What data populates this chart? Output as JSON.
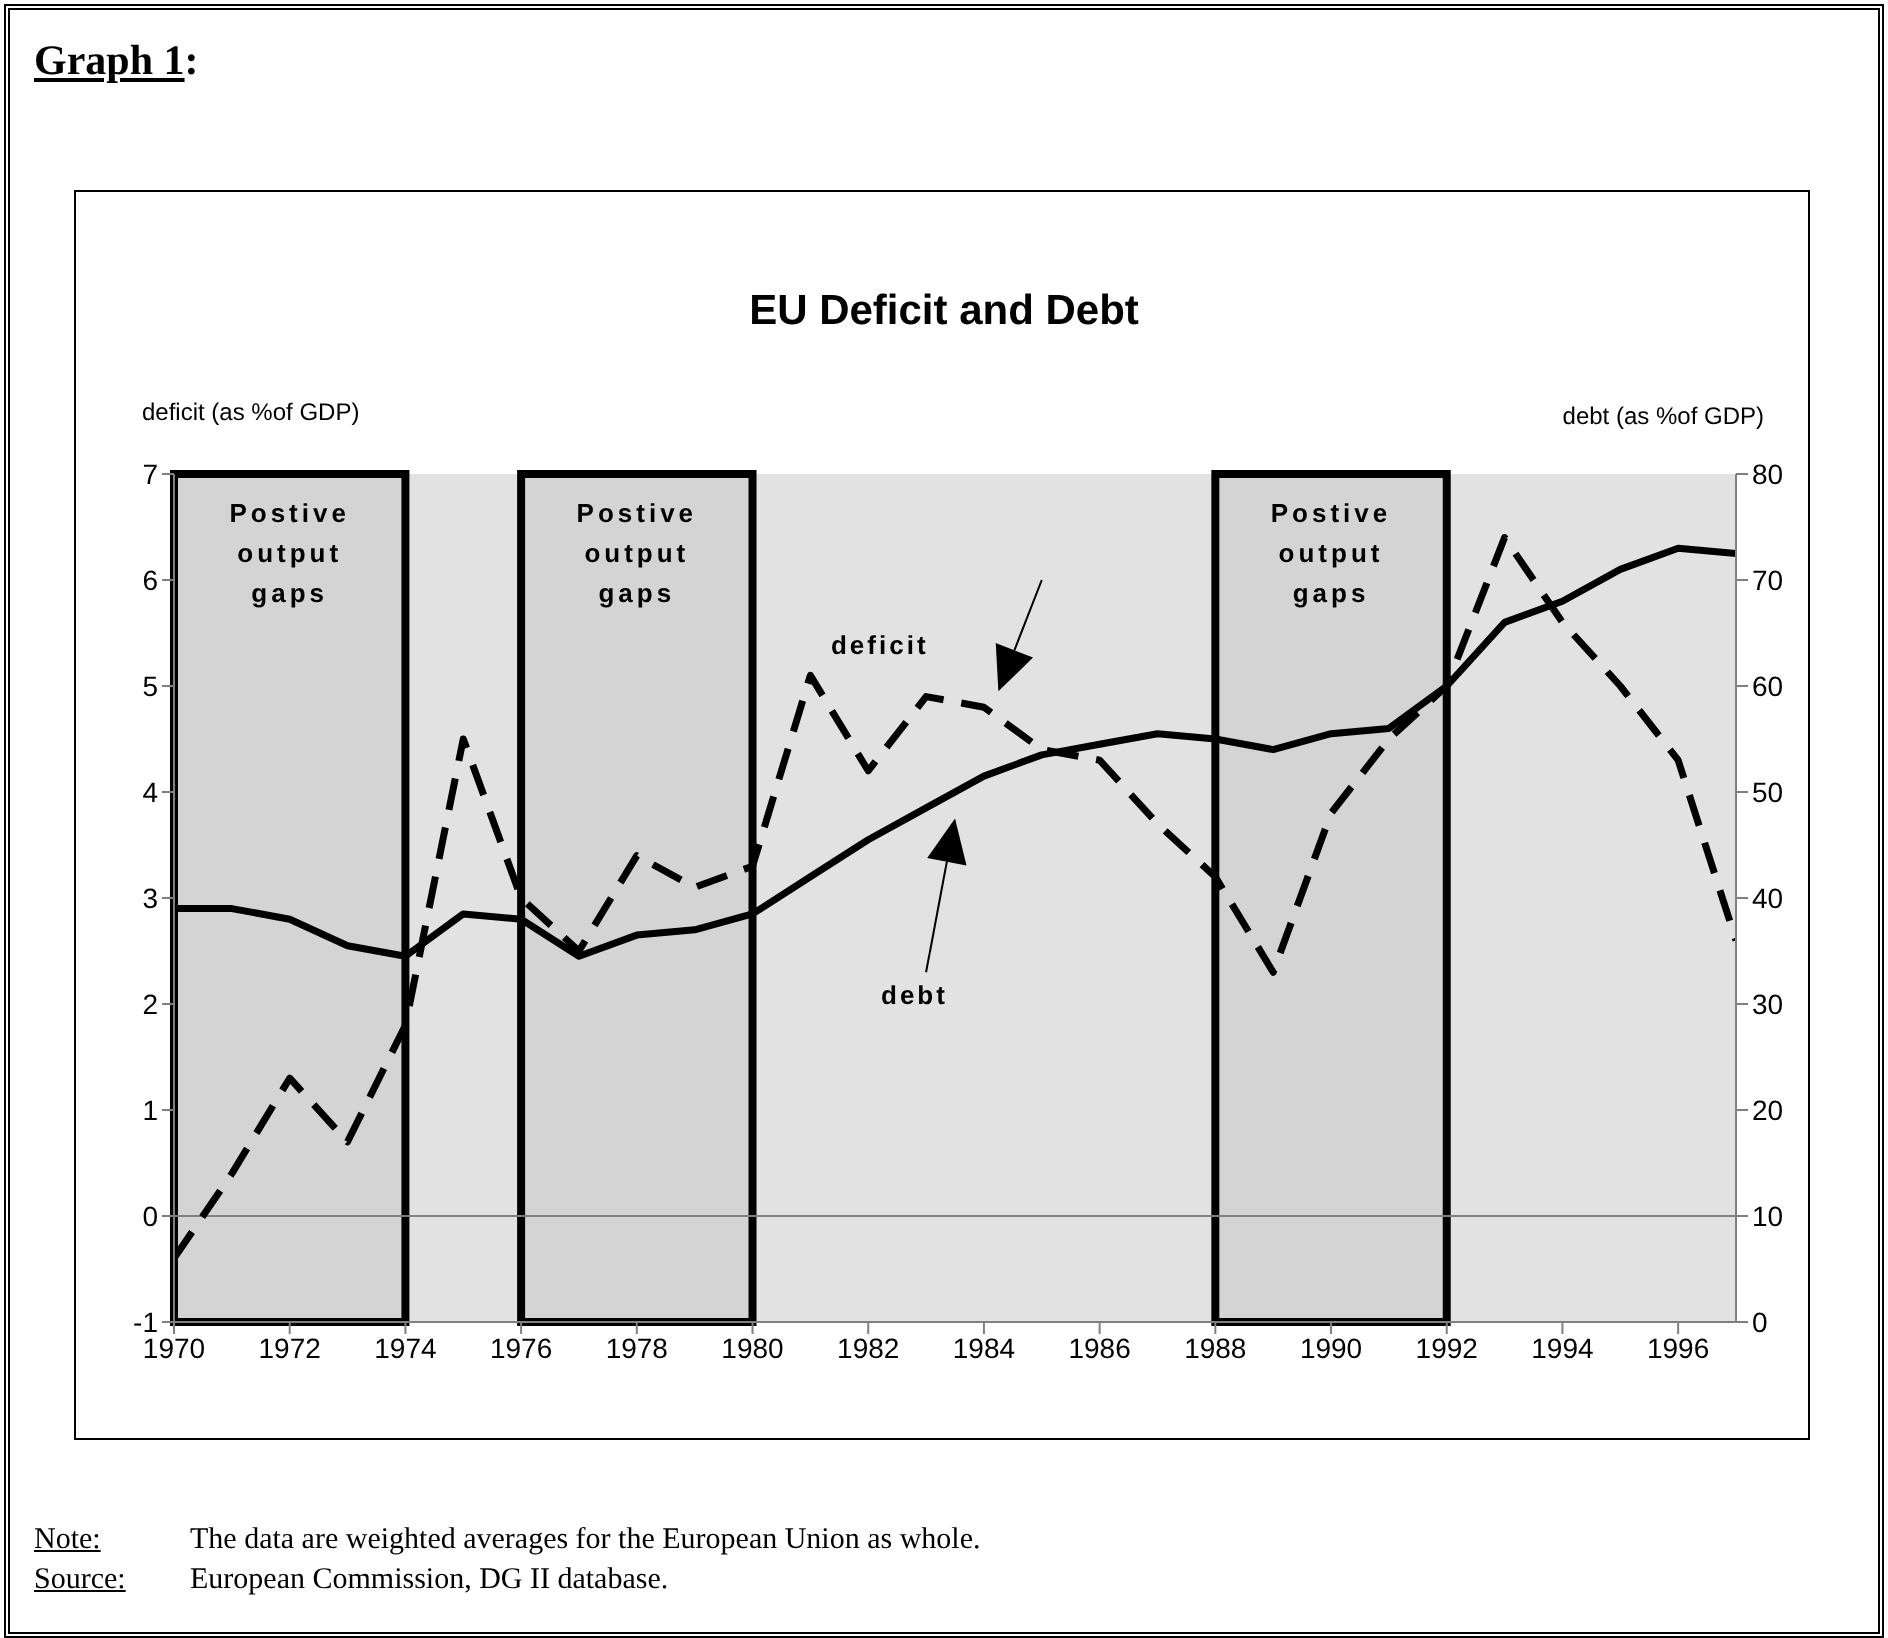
{
  "chart_data": {
    "type": "line",
    "title": "EU Deficit and Debt",
    "ylabel": "deficit (as %of GDP)",
    "y2label": "debt (as %of GDP)",
    "x": [
      1970,
      1971,
      1972,
      1973,
      1974,
      1975,
      1976,
      1977,
      1978,
      1979,
      1980,
      1981,
      1982,
      1983,
      1984,
      1985,
      1986,
      1987,
      1988,
      1989,
      1990,
      1991,
      1992,
      1993,
      1994,
      1995,
      1996,
      1997
    ],
    "series": [
      {
        "name": "deficit",
        "color": "#000000",
        "line_style": "dashed",
        "values": [
          -0.4,
          0.4,
          1.3,
          0.7,
          1.8,
          4.5,
          3.0,
          2.5,
          3.4,
          3.1,
          3.3,
          5.1,
          4.2,
          4.9,
          4.8,
          4.4,
          4.3,
          3.7,
          3.2,
          2.3,
          3.8,
          4.5,
          5.0,
          6.4,
          5.6,
          5.0,
          4.3,
          2.6
        ]
      },
      {
        "name": "debt",
        "color": "#000000",
        "line_style": "solid",
        "axis": "y2",
        "values": [
          39,
          39,
          38,
          35.5,
          34.5,
          38.5,
          38,
          34.5,
          36.5,
          37,
          38.5,
          42,
          45.5,
          48.5,
          51.5,
          53.5,
          54.5,
          55.5,
          55,
          54,
          55.5,
          56,
          60,
          66,
          68,
          71,
          73,
          72.5
        ]
      }
    ],
    "xlim": [
      1970,
      1997
    ],
    "xticks": [
      1970,
      1972,
      1974,
      1976,
      1978,
      1980,
      1982,
      1984,
      1986,
      1988,
      1990,
      1992,
      1994,
      1996
    ],
    "ylim": [
      -1,
      7
    ],
    "yticks": [
      -1,
      0,
      1,
      2,
      3,
      4,
      5,
      6,
      7
    ],
    "y2lim": [
      0,
      80
    ],
    "y2ticks": [
      0,
      10,
      20,
      30,
      40,
      50,
      60,
      70,
      80
    ],
    "ref_lines": [
      {
        "axis": "y",
        "value": 0,
        "color": "#808080"
      }
    ],
    "bands": [
      {
        "axis": "x",
        "from": 1970,
        "to": 1974,
        "label": "Postive output gaps",
        "color": "#000000"
      },
      {
        "axis": "x",
        "from": 1976,
        "to": 1980,
        "label": "Postive output gaps",
        "color": "#000000"
      },
      {
        "axis": "x",
        "from": 1988,
        "to": 1992,
        "label": "Postive output gaps",
        "color": "#000000"
      }
    ],
    "grid": false,
    "legend": false,
    "marker": "none",
    "annotations": [
      "Graph 1:",
      "Note: The data are weighted averages for the European Union as whole.",
      "Source: European Commission, DG II database."
    ]
  }
}
